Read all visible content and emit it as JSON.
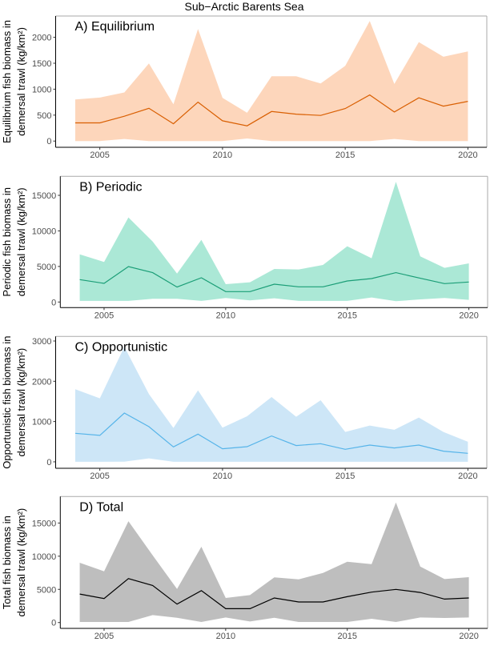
{
  "title": "Sub−Arctic Barents Sea",
  "chart_data": [
    {
      "type": "area",
      "panel_label": "A) Equilibrium",
      "ylabel": [
        "Equilibrium fish biomass in",
        "demersal trawl (kg/km²)"
      ],
      "x": [
        2004,
        2005,
        2006,
        2007,
        2008,
        2009,
        2010,
        2011,
        2012,
        2013,
        2014,
        2015,
        2016,
        2017,
        2018,
        2019,
        2020
      ],
      "mean": [
        350,
        350,
        478,
        632,
        334,
        750,
        390,
        293,
        570,
        519,
        494,
        627,
        889,
        560,
        833,
        673,
        766
      ],
      "upper": [
        802,
        838,
        936,
        1496,
        709,
        2159,
        833,
        545,
        1249,
        1249,
        1110,
        1450,
        2314,
        1100,
        1907,
        1625,
        1727
      ],
      "lower": [
        0,
        0,
        40,
        0,
        0,
        0,
        0,
        50,
        0,
        0,
        0,
        0,
        0,
        40,
        0,
        0,
        0
      ],
      "xticks": [
        2005,
        2010,
        2015,
        2020
      ],
      "yticks": [
        0,
        500,
        1000,
        1500,
        2000
      ],
      "xlim": [
        2003.2,
        2020.77
      ],
      "ylim": [
        -120,
        2410
      ],
      "line_color": "#d95f02",
      "fill_color": "#fdd6bb"
    },
    {
      "type": "area",
      "panel_label": "B) Periodic",
      "ylabel": [
        "Periodic fish biomass in",
        "demersal trawl (kg/km²)"
      ],
      "x": [
        2004,
        2005,
        2006,
        2007,
        2008,
        2009,
        2010,
        2011,
        2012,
        2013,
        2014,
        2015,
        2016,
        2017,
        2018,
        2019,
        2020
      ],
      "mean": [
        3150,
        2625,
        4990,
        4125,
        2100,
        3410,
        1460,
        1460,
        2510,
        2140,
        2140,
        2960,
        3300,
        4125,
        3340,
        2590,
        2810
      ],
      "upper": [
        6710,
        5625,
        11890,
        8510,
        4010,
        8740,
        2510,
        2775,
        4650,
        4575,
        5210,
        7840,
        6150,
        16910,
        6410,
        4800,
        5440
      ],
      "lower": [
        150,
        150,
        150,
        450,
        450,
        150,
        560,
        225,
        525,
        150,
        150,
        150,
        640,
        110,
        375,
        560,
        300
      ],
      "xticks": [
        2005,
        2010,
        2015,
        2020
      ],
      "yticks": [
        0,
        5000,
        10000,
        15000
      ],
      "xlim": [
        2003.2,
        2020.77
      ],
      "ylim": [
        -790,
        17670
      ],
      "line_color": "#1b9e77",
      "fill_color": "#abe8d6"
    },
    {
      "type": "area",
      "panel_label": "C) Opportunistic",
      "ylabel": [
        "Opportunistic fish biomass in",
        "demersal trawl (kg/km²)"
      ],
      "x": [
        2004,
        2005,
        2006,
        2007,
        2008,
        2009,
        2010,
        2011,
        2012,
        2013,
        2014,
        2015,
        2016,
        2017,
        2018,
        2019,
        2020
      ],
      "mean": [
        709,
        656,
        1212,
        874,
        371,
        689,
        325,
        377,
        642,
        404,
        450,
        311,
        417,
        344,
        417,
        265,
        212
      ],
      "upper": [
        1801,
        1576,
        2854,
        1682,
        841,
        1775,
        848,
        1132,
        1609,
        1119,
        1530,
        742,
        901,
        795,
        1099,
        742,
        497
      ],
      "lower": [
        0,
        0,
        5,
        86,
        0,
        0,
        0,
        0,
        0,
        0,
        0,
        0,
        0,
        0,
        0,
        0,
        0
      ],
      "xticks": [
        2005,
        2010,
        2015,
        2020
      ],
      "yticks": [
        0,
        1000,
        2000,
        3000
      ],
      "xlim": [
        2003.2,
        2020.77
      ],
      "ylim": [
        -160,
        3113
      ],
      "line_color": "#56b4e9",
      "fill_color": "#cde6f7"
    },
    {
      "type": "area",
      "panel_label": "D) Total",
      "ylabel": [
        "Total fish biomass in",
        "demersal trawl (kg/km²)"
      ],
      "x": [
        2004,
        2005,
        2006,
        2007,
        2008,
        2009,
        2010,
        2011,
        2012,
        2013,
        2014,
        2015,
        2016,
        2017,
        2018,
        2019,
        2020
      ],
      "mean": [
        4300,
        3620,
        6630,
        5590,
        2770,
        4820,
        2090,
        2090,
        3700,
        3100,
        3100,
        3900,
        4580,
        4990,
        4540,
        3540,
        3700
      ],
      "upper": [
        9010,
        7720,
        15280,
        10130,
        5070,
        11420,
        3700,
        4140,
        6800,
        6510,
        7480,
        9170,
        8810,
        18090,
        8440,
        6550,
        6840
      ],
      "lower": [
        80,
        80,
        80,
        1125,
        725,
        80,
        765,
        160,
        725,
        80,
        80,
        80,
        565,
        80,
        765,
        685,
        765
      ],
      "xticks": [
        2005,
        2010,
        2015,
        2020
      ],
      "yticks": [
        0,
        5000,
        10000,
        15000
      ],
      "xlim": [
        2003.2,
        2020.77
      ],
      "ylim": [
        -880,
        18990
      ],
      "line_color": "#000000",
      "fill_color": "#bebebe"
    }
  ]
}
